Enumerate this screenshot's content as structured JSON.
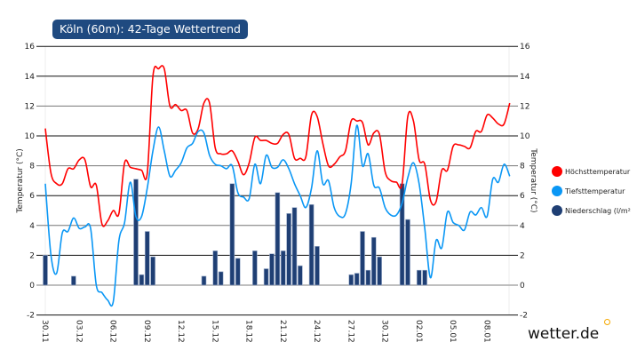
{
  "title": "Köln (60m): 42-Tage Wettertrend",
  "brand": "wetter.de",
  "legend": [
    {
      "label": "Höchsttemperatur",
      "color": "#ff0000"
    },
    {
      "label": "Tiefsttemperatur",
      "color": "#0a97f5"
    },
    {
      "label": "Niederschlag (l/m²",
      "color": "#1f3f74"
    }
  ],
  "chart_data": {
    "type": "line+bar",
    "ylabel_left": "Temperatur (°C)",
    "ylabel_right": "Temperatur (°C)",
    "ylim": [
      -2,
      16
    ],
    "yticks": [
      -2,
      0,
      2,
      4,
      6,
      8,
      10,
      12,
      14,
      16
    ],
    "xticks": [
      "30.11",
      "03.12",
      "06.12",
      "09.12",
      "12.12",
      "15.12",
      "18.12",
      "21.12",
      "24.12",
      "27.12",
      "30.12",
      "02.01",
      "05.01",
      "08.01"
    ],
    "grid": true,
    "legend_position": "right",
    "series": [
      {
        "name": "Höchsttemperatur",
        "type": "line",
        "color": "#ff0000",
        "values": [
          10.5,
          7.5,
          6.8,
          6.8,
          7.8,
          7.8,
          8.4,
          8.4,
          6.6,
          6.7,
          4.1,
          4.3,
          5,
          4.8,
          8.2,
          7.9,
          7.8,
          7.7,
          7.5,
          14,
          14.5,
          14.5,
          12,
          12.1,
          11.7,
          11.7,
          10.2,
          10.5,
          12.2,
          12.2,
          9.2,
          8.8,
          8.8,
          9,
          8.3,
          7.4,
          8.2,
          9.9,
          9.7,
          9.7,
          9.5,
          9.5,
          10.1,
          10.1,
          8.5,
          8.5,
          8.6,
          11.4,
          11.3,
          9.5,
          8,
          8.1,
          8.6,
          9,
          11,
          11,
          10.9,
          9.4,
          10.2,
          10.1,
          7.6,
          7,
          6.9,
          6.8,
          11.3,
          11,
          8.4,
          8.1,
          5.7,
          5.6,
          7.7,
          7.7,
          9.3,
          9.4,
          9.3,
          9.2,
          10.3,
          10.3,
          11.4,
          11.2,
          10.8,
          10.8,
          12.2
        ]
      },
      {
        "name": "Tiefsttemperatur",
        "type": "line",
        "color": "#0a97f5",
        "values": [
          6.8,
          2,
          0.8,
          3.5,
          3.6,
          4.5,
          3.8,
          3.9,
          3.8,
          0,
          -0.5,
          -1,
          -1.1,
          3,
          4.2,
          6.9,
          4.6,
          4.6,
          6.5,
          9,
          10.6,
          9,
          7.3,
          7.7,
          8.2,
          9.2,
          9.5,
          10.3,
          10.2,
          8.7,
          8.1,
          8,
          7.8,
          8,
          6.2,
          5.9,
          5.8,
          8.1,
          6.8,
          8.7,
          7.9,
          7.9,
          8.4,
          7.8,
          6.8,
          6,
          5.2,
          6.5,
          9,
          6.8,
          7,
          5.2,
          4.6,
          4.8,
          6.8,
          10.7,
          8,
          8.8,
          6.7,
          6.5,
          5.2,
          4.7,
          4.7,
          5.5,
          7.2,
          8.2,
          6.8,
          3.8,
          0.5,
          3,
          2.5,
          4.9,
          4.2,
          4,
          3.7,
          4.9,
          4.7,
          5.2,
          4.6,
          7.1,
          6.9,
          8.1,
          7.3
        ]
      },
      {
        "name": "Niederschlag (l/m²",
        "type": "bar",
        "color": "#1f3f74",
        "values": [
          2,
          0,
          0,
          0,
          0,
          0.6,
          0,
          0,
          0,
          0,
          0,
          0,
          0,
          0,
          0,
          0,
          7.1,
          0.7,
          3.6,
          1.9,
          0,
          0,
          0,
          0,
          0,
          0,
          0,
          0,
          0.6,
          0,
          2.3,
          0.9,
          0,
          6.8,
          1.8,
          0,
          0,
          2.3,
          0,
          1.1,
          2.1,
          6.2,
          2.3,
          4.8,
          5.2,
          1.3,
          0,
          5.4,
          2.6,
          0,
          0,
          0,
          0,
          0,
          0.7,
          0.8,
          3.6,
          1,
          3.2,
          1.9,
          0,
          0,
          0,
          6.8,
          4.4,
          0,
          1,
          1,
          0,
          0,
          0,
          0,
          0,
          0,
          0,
          0,
          0,
          0,
          0,
          0,
          0,
          0,
          0
        ]
      }
    ]
  }
}
